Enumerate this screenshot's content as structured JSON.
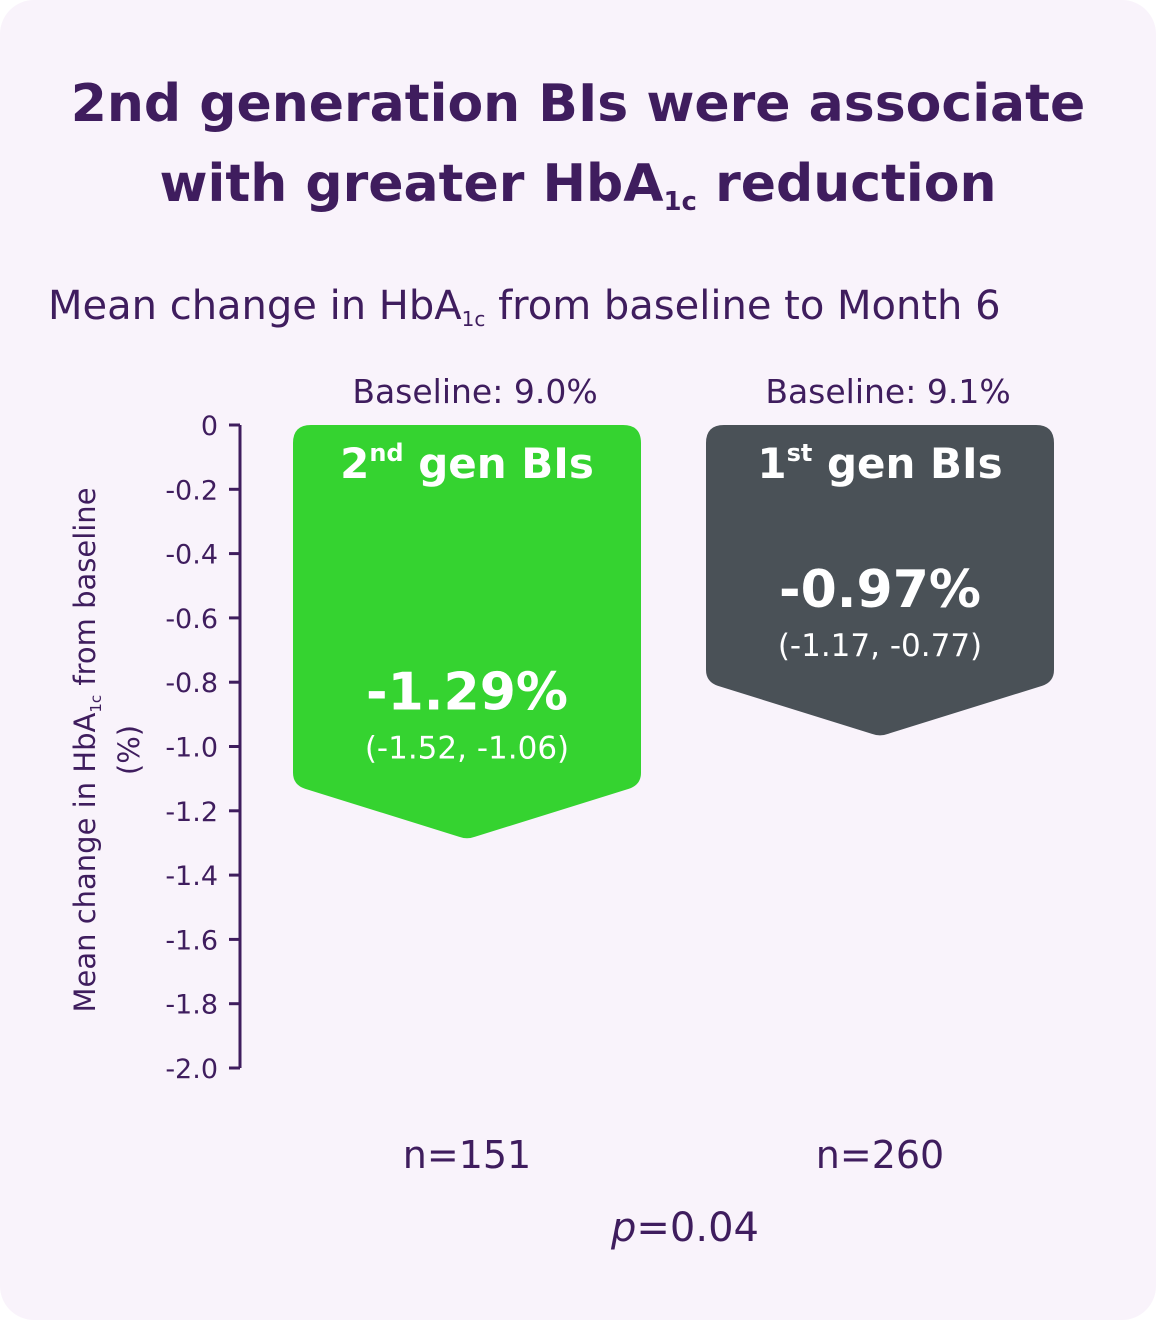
{
  "title": {
    "line1": "2nd generation BIs were associate",
    "line2_pre": "with greater HbA",
    "line2_sub": "1c",
    "line2_post": " reduction"
  },
  "subtitle": {
    "pre": "Mean change in HbA",
    "sub": "1c",
    "post": " from baseline to Month 6"
  },
  "p_value": {
    "label": "p",
    "value": "=0.04"
  },
  "colors": {
    "background": "#f9f3fb",
    "text": "#3f1d5e",
    "bar_2nd_gen": "#35d330",
    "bar_1st_gen": "#4a5157"
  },
  "chart_data": {
    "type": "bar",
    "ylabel_pre": "Mean change in HbA",
    "ylabel_sub": "1c",
    "ylabel_post": " from baseline",
    "ylabel_line2": "(%)",
    "ylim": [
      -2.0,
      0
    ],
    "yticks": [
      0,
      -0.2,
      -0.4,
      -0.6,
      -0.8,
      -1.0,
      -1.2,
      -1.4,
      -1.6,
      -1.8,
      -2.0
    ],
    "ytick_labels": [
      "0",
      "-0.2",
      "-0.4",
      "-0.6",
      "-0.8",
      "-1.0",
      "-1.2",
      "-1.4",
      "-1.6",
      "-1.8",
      "-2.0"
    ],
    "grid": false,
    "bars": [
      {
        "name_main": "2",
        "name_sup": "nd",
        "name_rest": " gen BIs",
        "baseline": "Baseline: 9.0%",
        "value": -1.29,
        "value_label": "-1.29%",
        "ci": [
          -1.52,
          -1.06
        ],
        "ci_label": "(-1.52, -1.06)",
        "n": "n=151",
        "color": "#35d330"
      },
      {
        "name_main": "1",
        "name_sup": "st",
        "name_rest": " gen BIs",
        "baseline": "Baseline: 9.1%",
        "value": -0.97,
        "value_label": "-0.97%",
        "ci": [
          -1.17,
          -0.77
        ],
        "ci_label": "(-1.17, -0.77)",
        "n": "n=260",
        "color": "#4a5157"
      }
    ]
  }
}
